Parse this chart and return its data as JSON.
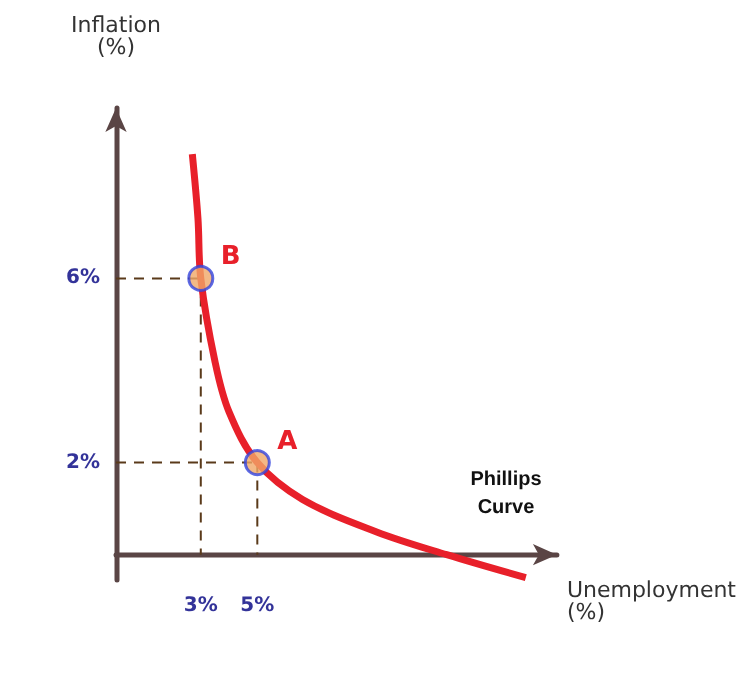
{
  "chart_data": {
    "type": "line",
    "xlabel": "Unemployment\n(%)",
    "ylabel": "Inflation\n(%)",
    "xlim": [
      0,
      15.6
    ],
    "ylim": [
      -0.55,
      9.7
    ],
    "xticks": [
      {
        "value": 3,
        "label": "3%"
      },
      {
        "value": 5,
        "label": "5%"
      }
    ],
    "yticks": [
      {
        "value": 2,
        "label": "2%"
      },
      {
        "value": 6,
        "label": "6%"
      }
    ],
    "grid": false,
    "series": [
      {
        "color": "#e8202a",
        "marker": "none",
        "x": [
          2.7,
          2.9,
          3,
          3.5,
          4,
          5,
          6.6,
          9.2,
          11.7,
          14.5
        ],
        "values": [
          8.7,
          7.3,
          6,
          4.2,
          3.1,
          2,
          1.2,
          0.5,
          0,
          -0.5
        ]
      },
      {
        "type": "scatter",
        "color": "#f0a868",
        "marker": "circle",
        "x": [
          3,
          5
        ],
        "values": [
          6,
          2
        ]
      }
    ],
    "annotations": [
      {
        "text": "B",
        "x": 3,
        "y": 6
      },
      {
        "text": "A",
        "x": 5,
        "y": 2
      },
      "Phillips\nCurve"
    ]
  }
}
